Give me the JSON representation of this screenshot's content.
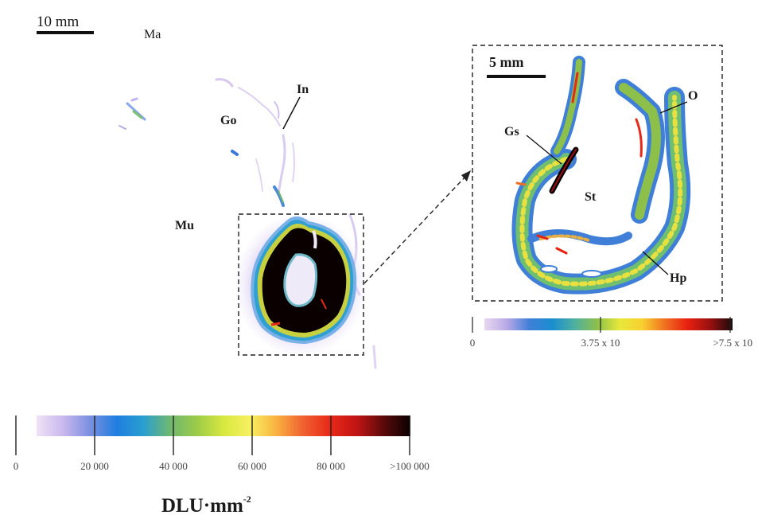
{
  "left_panel": {
    "scale_bar_label": "10 mm",
    "labels": {
      "ma": "Ma",
      "in": "In",
      "go": "Go",
      "mu": "Mu"
    }
  },
  "inset_panel": {
    "scale_bar_label": "5 mm",
    "labels": {
      "o": "O",
      "gs": "Gs",
      "st": "St",
      "hp": "Hp"
    },
    "colorbar": {
      "ticks": [
        "0",
        "3.75 x 10",
        ">7.5 x 10"
      ],
      "colors": [
        "#e8d8f0",
        "#b8a8e6",
        "#3f7fd8",
        "#1a8ed0",
        "#4fb0a0",
        "#8dc04a",
        "#e8e83a",
        "#f8d030",
        "#f07020",
        "#e82010",
        "#9a1010",
        "#1a0a0a"
      ]
    }
  },
  "main_colorbar": {
    "ticks": [
      "0",
      "20 000",
      "40 000",
      "60 000",
      "80 000",
      ">100 000"
    ],
    "unit_label": "DLU·mm",
    "unit_exponent": "-2",
    "colors": [
      "#efe2f6",
      "#c9b8ee",
      "#7a8fe0",
      "#1f7ee0",
      "#2a9fd0",
      "#6fb870",
      "#9ccb48",
      "#d8e840",
      "#f8f060",
      "#f8b040",
      "#f06030",
      "#e82818",
      "#c01414",
      "#5a0a0a",
      "#0a0000"
    ]
  }
}
